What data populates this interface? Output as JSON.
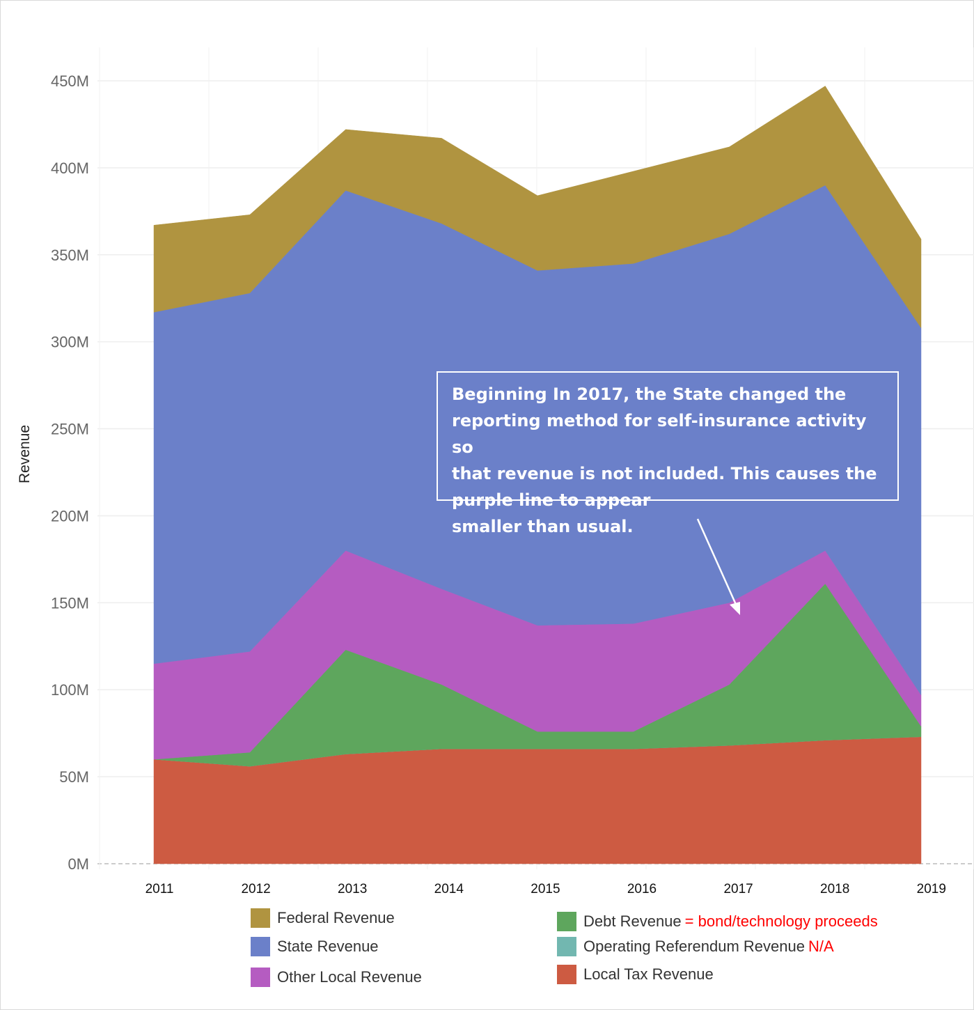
{
  "chart_data": {
    "type": "area",
    "stacked": true,
    "x": [
      "2011",
      "2012",
      "2013",
      "2014",
      "2015",
      "2016",
      "2017",
      "2018",
      "2019"
    ],
    "ylabel": "Revenue",
    "ylim": [
      0,
      450000000
    ],
    "yticks": [
      "0M",
      "50M",
      "100M",
      "150M",
      "200M",
      "250M",
      "300M",
      "350M",
      "400M",
      "450M"
    ],
    "grid": true,
    "legend_position": "bottom",
    "series": [
      {
        "key": "local_tax",
        "name": "Local Tax Revenue",
        "color": "#cd5b42",
        "values": [
          60,
          56,
          63,
          66,
          66,
          66,
          68,
          71,
          73
        ]
      },
      {
        "key": "operating_referendum",
        "name": "Operating Referendum Revenue",
        "note": "N/A",
        "color": "#72b7b0",
        "values": [
          0,
          0,
          0,
          0,
          0,
          0,
          0,
          0,
          0
        ]
      },
      {
        "key": "debt",
        "name": "Debt Revenue",
        "note": "= bond/technology proceeds",
        "color": "#5ea65d",
        "values": [
          0,
          8,
          60,
          37,
          10,
          10,
          35,
          90,
          6
        ]
      },
      {
        "key": "other_local",
        "name": "Other Local Revenue",
        "color": "#b55cc1",
        "values": [
          55,
          58,
          57,
          55,
          61,
          62,
          47,
          19,
          18
        ]
      },
      {
        "key": "state",
        "name": "State Revenue",
        "color": "#6b80c9",
        "values": [
          202,
          206,
          207,
          210,
          204,
          207,
          212,
          210,
          211
        ]
      },
      {
        "key": "federal",
        "name": "Federal Revenue",
        "color": "#b09440",
        "values": [
          50,
          45,
          35,
          49,
          43,
          53,
          50,
          57,
          51
        ]
      }
    ],
    "value_units": "M",
    "annotation": {
      "lines": [
        "Beginning In 2017, the State changed the",
        "reporting method for self-insurance activity so",
        "that revenue is not included.  This causes the",
        "purple line to appear",
        "smaller than usual."
      ]
    }
  },
  "legend": {
    "federal": "Federal Revenue",
    "state": "State Revenue",
    "other_local": "Other Local Revenue",
    "debt": "Debt Revenue",
    "debt_note": "= bond/technology proceeds",
    "operating_referendum": "Operating Referendum Revenue",
    "operating_referendum_note": "N/A",
    "local_tax": "Local Tax Revenue"
  },
  "colors": {
    "federal": "#b09440",
    "state": "#6b80c9",
    "other_local": "#b55cc1",
    "debt": "#5ea65d",
    "operating_referendum": "#72b7b0",
    "local_tax": "#cd5b42",
    "note_red": "#ff0000"
  }
}
